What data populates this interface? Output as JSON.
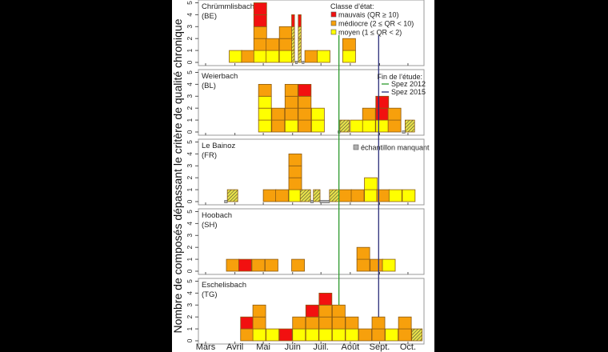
{
  "chart_data": {
    "type": "bar",
    "stacked": true,
    "ylabel": "Nombre de composés dépassant le critère de qualité chronique",
    "ylim": [
      0,
      5
    ],
    "yticks": [
      "0",
      "1",
      "2",
      "3",
      "4",
      "5"
    ],
    "xticks": [
      {
        "label": "Mars",
        "date": "03-01"
      },
      {
        "label": "Avril",
        "date": "04-01"
      },
      {
        "label": "Mai",
        "date": "05-01"
      },
      {
        "label": "Juin",
        "date": "06-01"
      },
      {
        "label": "Juil.",
        "date": "07-01"
      },
      {
        "label": "Août",
        "date": "08-01"
      },
      {
        "label": "Sept.",
        "date": "09-01"
      },
      {
        "label": "Oct.",
        "date": "10-01"
      }
    ],
    "classes": {
      "title": "Classe d’état:",
      "items": [
        {
          "key": "R",
          "label": "mauvais (QR ≥ 10)",
          "color": "#f21010"
        },
        {
          "key": "O",
          "label": "médiocre (2 ≤ QR < 10)",
          "color": "#f7a00c"
        },
        {
          "key": "Y",
          "label": "moyen (1 ≤ QR < 2)",
          "color": "#ffff00"
        }
      ],
      "hatched_color": "#e6e04a"
    },
    "study_end": {
      "title": "Fin de l’étude:",
      "items": [
        {
          "label": "Spez 2012",
          "date": "07-20",
          "color": "#2e9a2e"
        },
        {
          "label": "Spez 2015",
          "date": "08-31",
          "color": "#2a2f7a"
        }
      ]
    },
    "missing_legend": {
      "label": "échantillon manquant",
      "color": "#b0b0b0"
    },
    "panels": [
      {
        "name": "Chrümmlisbach",
        "canton": "(BE)",
        "samples": [
          {
            "start": "03-26",
            "stack": [
              "Y"
            ]
          },
          {
            "start": "04-08",
            "stack": [
              "O"
            ]
          },
          {
            "start": "04-21",
            "stack": [
              "Y",
              "O",
              "O",
              "R",
              "R"
            ]
          },
          {
            "start": "05-04",
            "stack": [
              "Y",
              "O"
            ]
          },
          {
            "start": "05-18",
            "stack": [
              "Y",
              "O",
              "O"
            ]
          },
          {
            "start": "05-31",
            "end": "06-03",
            "stack": [
              "H",
              "H",
              "H",
              "R"
            ]
          },
          {
            "start": "06-07",
            "end": "06-10",
            "stack": [
              "H",
              "H",
              "H",
              "R"
            ]
          },
          {
            "start": "06-14",
            "stack": [
              "O"
            ]
          },
          {
            "start": "06-27",
            "stack": [
              "Y"
            ]
          },
          {
            "start": "07-24",
            "stack": [
              "Y",
              "O"
            ]
          }
        ],
        "missing": [
          {
            "start": "06-04",
            "end": "06-06"
          },
          {
            "start": "06-11",
            "end": "06-13"
          }
        ]
      },
      {
        "name": "Weierbach",
        "canton": "(BL)",
        "samples": [
          {
            "start": "04-26",
            "stack": [
              "Y",
              "Y",
              "Y",
              "O"
            ]
          },
          {
            "start": "05-10",
            "stack": [
              "O",
              "O"
            ]
          },
          {
            "start": "05-24",
            "stack": [
              "Y",
              "O",
              "O",
              "O"
            ]
          },
          {
            "start": "06-07",
            "stack": [
              "O",
              "O",
              "O",
              "R"
            ]
          },
          {
            "start": "06-21",
            "stack": [
              "Y",
              "Y"
            ]
          },
          {
            "start": "07-21",
            "end": "07-31",
            "stack": [
              "H"
            ]
          },
          {
            "start": "08-01",
            "stack": [
              "Y"
            ]
          },
          {
            "start": "08-14",
            "stack": [
              "Y",
              "O"
            ]
          },
          {
            "start": "08-28",
            "stack": [
              "Y",
              "R",
              "R"
            ]
          },
          {
            "start": "09-10",
            "stack": [
              "O",
              "O"
            ]
          },
          {
            "start": "09-28",
            "end": "10-08",
            "stack": [
              "H"
            ]
          }
        ],
        "missing": [
          {
            "start": "07-19",
            "end": "07-21"
          },
          {
            "start": "09-25",
            "end": "09-28"
          }
        ]
      },
      {
        "name": "Le Bainoz",
        "canton": "(FR)",
        "samples": [
          {
            "start": "03-24",
            "end": "04-04",
            "stack": [
              "H"
            ]
          },
          {
            "start": "05-01",
            "stack": [
              "O"
            ]
          },
          {
            "start": "05-14",
            "stack": [
              "O"
            ]
          },
          {
            "start": "05-28",
            "stack": [
              "Y",
              "O",
              "O",
              "O"
            ]
          },
          {
            "start": "06-09",
            "end": "06-20",
            "stack": [
              "H"
            ]
          },
          {
            "start": "06-23",
            "end": "06-30",
            "stack": [
              "H"
            ]
          },
          {
            "start": "07-10",
            "end": "07-20",
            "stack": [
              "H"
            ]
          },
          {
            "start": "07-20",
            "stack": [
              "O"
            ]
          },
          {
            "start": "08-02",
            "stack": [
              "O"
            ]
          },
          {
            "start": "08-16",
            "stack": [
              "Y",
              "Y"
            ]
          },
          {
            "start": "08-29",
            "stack": [
              "O"
            ]
          },
          {
            "start": "09-11",
            "stack": [
              "Y"
            ]
          },
          {
            "start": "09-25",
            "stack": [
              "Y"
            ]
          }
        ],
        "missing": [
          {
            "start": "03-21",
            "end": "03-24"
          },
          {
            "start": "06-20",
            "end": "06-23"
          },
          {
            "start": "06-30",
            "end": "07-10"
          }
        ]
      },
      {
        "name": "Hoobach",
        "canton": "(SH)",
        "samples": [
          {
            "start": "03-23",
            "stack": [
              "O"
            ]
          },
          {
            "start": "04-05",
            "stack": [
              "R"
            ]
          },
          {
            "start": "04-19",
            "stack": [
              "O"
            ]
          },
          {
            "start": "05-03",
            "stack": [
              "O"
            ]
          },
          {
            "start": "05-31",
            "stack": [
              "O"
            ]
          },
          {
            "start": "08-08",
            "stack": [
              "O",
              "O"
            ]
          },
          {
            "start": "08-22",
            "stack": [
              "O"
            ]
          },
          {
            "start": "09-04",
            "stack": [
              "Y"
            ]
          }
        ],
        "missing": []
      },
      {
        "name": "Eschelisbach",
        "canton": "(TG)",
        "samples": [
          {
            "start": "04-07",
            "stack": [
              "O",
              "R"
            ]
          },
          {
            "start": "04-20",
            "stack": [
              "Y",
              "O",
              "O"
            ]
          },
          {
            "start": "05-04",
            "stack": [
              "Y"
            ]
          },
          {
            "start": "05-18",
            "stack": [
              "R"
            ]
          },
          {
            "start": "06-01",
            "stack": [
              "Y",
              "O"
            ]
          },
          {
            "start": "06-15",
            "stack": [
              "Y",
              "O",
              "R"
            ]
          },
          {
            "start": "06-29",
            "stack": [
              "Y",
              "O",
              "O",
              "R"
            ]
          },
          {
            "start": "07-13",
            "stack": [
              "Y",
              "O",
              "O"
            ]
          },
          {
            "start": "07-27",
            "stack": [
              "Y",
              "O"
            ]
          },
          {
            "start": "08-10",
            "stack": [
              "O"
            ]
          },
          {
            "start": "08-24",
            "stack": [
              "O",
              "O"
            ]
          },
          {
            "start": "09-07",
            "stack": [
              "Y"
            ]
          },
          {
            "start": "09-21",
            "stack": [
              "O",
              "O"
            ]
          },
          {
            "start": "10-05",
            "end": "10-16",
            "stack": [
              "H"
            ]
          }
        ],
        "missing": []
      }
    ]
  }
}
